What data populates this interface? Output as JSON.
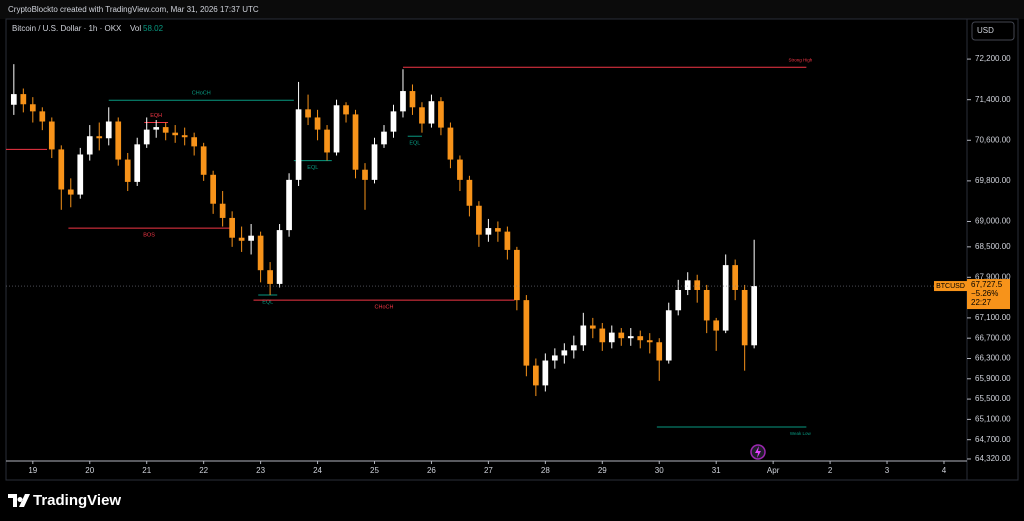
{
  "header": {
    "created_by": "CryptoBlockto created with TradingView.com, Mar 31, 2026 17:37 UTC"
  },
  "chart_data": {
    "type": "candlestick",
    "title": "Bitcoin / U.S. Dollar · 1h · OKX",
    "volume_label": "Vol",
    "volume_value": "58.02",
    "currency": "USD",
    "symbol": "BTCUSD",
    "last_price": {
      "value": 67727.5,
      "label": "67,727.5"
    },
    "change": "−5.26%",
    "countdown": "22:27",
    "up_color": "#ffffff",
    "down_color": "#f7931a",
    "x": [
      -8,
      -4,
      0,
      4,
      8,
      12,
      16,
      20,
      24,
      28,
      32,
      36,
      40,
      44,
      48,
      52,
      56,
      60,
      64,
      68,
      72,
      76,
      80,
      84,
      88,
      92,
      96,
      100,
      104,
      108,
      112,
      116,
      120,
      124,
      128,
      132,
      136,
      140,
      144,
      148,
      152,
      156,
      160,
      164,
      168,
      172,
      176,
      180,
      184,
      188,
      192,
      196,
      200,
      204,
      208,
      212,
      216,
      220,
      224,
      228,
      232,
      236,
      240,
      244,
      248,
      252,
      256,
      260,
      264,
      268,
      272,
      276,
      280,
      284,
      288,
      292,
      296,
      300,
      304
    ],
    "open": [
      71300,
      71510,
      71310,
      71170,
      70970,
      70420,
      69630,
      69530,
      70320,
      70680,
      70640,
      70970,
      70220,
      69780,
      70520,
      70810,
      70860,
      70750,
      70700,
      70660,
      70480,
      69920,
      69350,
      69070,
      68680,
      68620,
      68720,
      68040,
      67770,
      68830,
      69820,
      71210,
      71050,
      70810,
      70360,
      71290,
      71110,
      70020,
      69820,
      70520,
      70770,
      71170,
      71570,
      71250,
      70930,
      71370,
      70850,
      70220,
      69820,
      69310,
      68740,
      68870,
      68800,
      68440,
      67450,
      66160,
      65770,
      66260,
      66360,
      66460,
      66560,
      66950,
      66890,
      66620,
      66810,
      66700,
      66740,
      66660,
      66620,
      66260,
      67250,
      67650,
      67840,
      67650,
      67050,
      66850,
      68140,
      67650,
      66560
    ],
    "high": [
      72100,
      71620,
      71450,
      71250,
      71050,
      70500,
      69850,
      70450,
      70900,
      70950,
      71250,
      71050,
      70350,
      70650,
      71050,
      71000,
      70950,
      70900,
      70850,
      70750,
      70550,
      70000,
      69600,
      69200,
      68900,
      68950,
      68800,
      68200,
      68950,
      69950,
      71750,
      71500,
      71200,
      70900,
      71400,
      71350,
      71200,
      70150,
      70650,
      70900,
      71300,
      72000,
      71700,
      71350,
      71500,
      71450,
      70950,
      70300,
      69900,
      69400,
      69050,
      69000,
      68900,
      68500,
      67550,
      66300,
      66400,
      66500,
      66600,
      66750,
      67200,
      67100,
      67000,
      66950,
      66900,
      66900,
      66850,
      66800,
      66700,
      67400,
      67850,
      68000,
      67950,
      67750,
      67100,
      68350,
      68250,
      67750,
      68640
    ],
    "low": [
      71100,
      71150,
      70950,
      70800,
      70250,
      69230,
      69280,
      69450,
      70200,
      70400,
      70500,
      70100,
      69600,
      69700,
      70450,
      70650,
      70600,
      70550,
      70500,
      70300,
      69800,
      69150,
      68900,
      68500,
      68400,
      68350,
      67800,
      67550,
      67700,
      68700,
      69700,
      70900,
      70600,
      70200,
      70300,
      70950,
      69850,
      69230,
      69750,
      70450,
      70650,
      71050,
      71100,
      70750,
      70850,
      70700,
      70050,
      69600,
      69100,
      68500,
      68600,
      68600,
      68250,
      67250,
      65950,
      65560,
      65650,
      66100,
      66200,
      66300,
      66450,
      66700,
      66450,
      66500,
      66550,
      66550,
      66500,
      66400,
      65860,
      66200,
      67150,
      67550,
      67400,
      66800,
      66450,
      66800,
      67450,
      66060,
      66500
    ],
    "close": [
      71510,
      71310,
      71170,
      70970,
      70420,
      69630,
      69530,
      70320,
      70680,
      70640,
      70970,
      70220,
      69780,
      70520,
      70810,
      70860,
      70750,
      70700,
      70660,
      70480,
      69920,
      69350,
      69070,
      68680,
      68620,
      68720,
      68040,
      67770,
      68830,
      69820,
      71210,
      71050,
      70810,
      70360,
      71290,
      71110,
      70020,
      69820,
      70520,
      70770,
      71170,
      71570,
      71250,
      70930,
      71370,
      70850,
      70220,
      69820,
      69310,
      68740,
      68870,
      68800,
      68440,
      67450,
      66160,
      65770,
      66260,
      66360,
      66460,
      66560,
      66950,
      66890,
      66620,
      66810,
      66700,
      66740,
      66660,
      66620,
      66260,
      67250,
      67650,
      67840,
      67650,
      67050,
      66850,
      68140,
      67650,
      66560,
      67727.5
    ],
    "xlim": [
      -11.3,
      393.7
    ],
    "xticks": [
      {
        "value": 0,
        "label": "19"
      },
      {
        "value": 24,
        "label": "20"
      },
      {
        "value": 48,
        "label": "21"
      },
      {
        "value": 72,
        "label": "22"
      },
      {
        "value": 96,
        "label": "23"
      },
      {
        "value": 120,
        "label": "24"
      },
      {
        "value": 144,
        "label": "25"
      },
      {
        "value": 168,
        "label": "26"
      },
      {
        "value": 192,
        "label": "27"
      },
      {
        "value": 216,
        "label": "28"
      },
      {
        "value": 240,
        "label": "29"
      },
      {
        "value": 264,
        "label": "30"
      },
      {
        "value": 288,
        "label": "31"
      },
      {
        "value": 312,
        "label": "Apr"
      },
      {
        "value": 336,
        "label": "2"
      },
      {
        "value": 360,
        "label": "3"
      },
      {
        "value": 384,
        "label": "4"
      }
    ],
    "ylim": [
      64280,
      72990
    ],
    "yticks": [
      {
        "value": 72200,
        "label": "72,200.00"
      },
      {
        "value": 71400,
        "label": "71,400.00"
      },
      {
        "value": 70600,
        "label": "70,600.00"
      },
      {
        "value": 69800,
        "label": "69,800.00"
      },
      {
        "value": 69000,
        "label": "69,000.00"
      },
      {
        "value": 68500,
        "label": "68,500.00"
      },
      {
        "value": 67900,
        "label": "67,900.00"
      },
      {
        "value": 67100,
        "label": "67,100.00"
      },
      {
        "value": 66700,
        "label": "66,700.00"
      },
      {
        "value": 66300,
        "label": "66,300.00"
      },
      {
        "value": 65900,
        "label": "65,900.00"
      },
      {
        "value": 65500,
        "label": "65,500.00"
      },
      {
        "value": 65100,
        "label": "65,100.00"
      },
      {
        "value": 64700,
        "label": "64,700.00"
      },
      {
        "value": 64320,
        "label": "64,320.00"
      }
    ],
    "levels": [
      {
        "price": 70420,
        "x1": -11.3,
        "x2": 6,
        "color": "#f23645"
      },
      {
        "label": "CHoCH",
        "price": 71390,
        "x1": 32,
        "x2": 110,
        "color": "#089981",
        "side": "above"
      },
      {
        "label": "EQH",
        "price": 70950,
        "x1": 47,
        "x2": 57,
        "color": "#f23645",
        "side": "above"
      },
      {
        "label": "BOS",
        "price": 68870,
        "x1": 15,
        "x2": 83,
        "color": "#f23645",
        "side": "below"
      },
      {
        "label": "EQL",
        "price": 70200,
        "x1": 110,
        "x2": 126,
        "color": "#089981",
        "side": "below"
      },
      {
        "label": "EQL",
        "price": 70680,
        "x1": 158,
        "x2": 164,
        "color": "#089981",
        "side": "below"
      },
      {
        "label": "EQL",
        "price": 67550,
        "x1": 95,
        "x2": 103,
        "color": "#089981",
        "side": "below"
      },
      {
        "label": "CHoCH",
        "price": 67450,
        "x1": 93,
        "x2": 203,
        "color": "#f23645",
        "side": "below"
      },
      {
        "label": "Strong High",
        "price": 72040,
        "x1": 156,
        "x2": 326,
        "color": "#f23645",
        "side": "above-end"
      },
      {
        "label": "Weak Low",
        "price": 64950,
        "x1": 263,
        "x2": 326,
        "color": "#089981",
        "side": "below-end"
      }
    ]
  },
  "footer": {
    "brand": "TradingView"
  }
}
